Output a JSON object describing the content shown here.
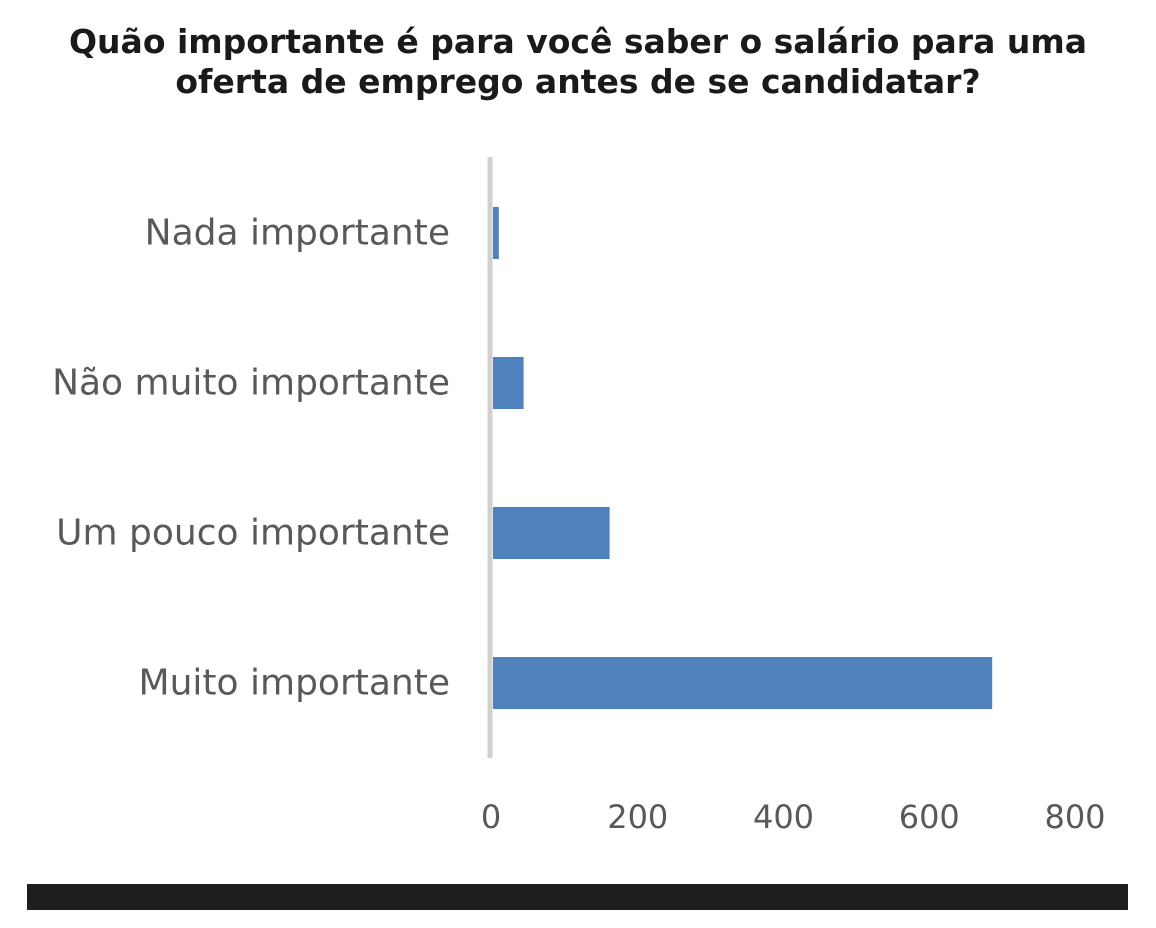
{
  "title": {
    "line1": "Quão importante é para você saber o salário para uma",
    "line2": "oferta de emprego antes de se candidatar?"
  },
  "colors": {
    "bar": "#4f81bd",
    "axis": "#d0d0d0",
    "label": "#595959",
    "footer": "#1e1e1e"
  },
  "chart_data": {
    "type": "bar",
    "orientation": "horizontal",
    "title": "Quão importante é para você saber o salário para uma oferta de emprego antes de se candidatar?",
    "categories": [
      "Nada importante",
      "Não muito importante",
      "Um pouco importante",
      "Muito importante"
    ],
    "values": [
      8,
      42,
      160,
      685
    ],
    "xlim": [
      0,
      800
    ],
    "xticks": [
      "0",
      "200",
      "400",
      "600",
      "800"
    ],
    "xlabel": "",
    "ylabel": "",
    "grid": false,
    "legend": "none"
  }
}
